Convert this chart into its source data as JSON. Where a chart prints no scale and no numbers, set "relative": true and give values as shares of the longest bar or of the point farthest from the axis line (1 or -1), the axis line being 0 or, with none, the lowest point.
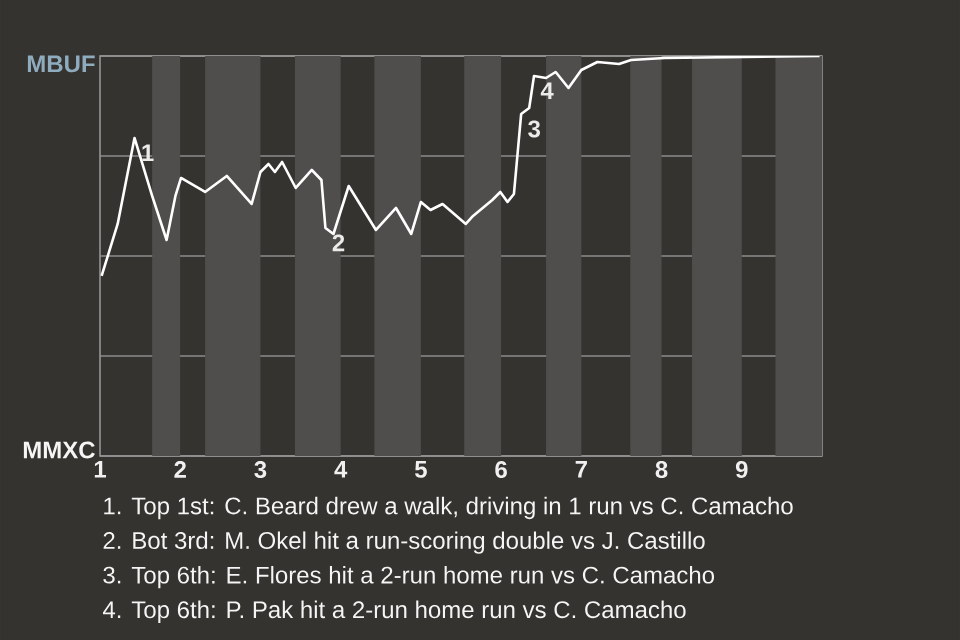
{
  "chart_data": {
    "type": "line",
    "relative": true,
    "x": [
      1.02,
      1.22,
      1.43,
      1.65,
      1.83,
      1.94,
      2.01,
      2.31,
      2.58,
      2.89,
      3.0,
      3.1,
      3.18,
      3.27,
      3.44,
      3.64,
      3.76,
      3.81,
      3.91,
      4.1,
      4.44,
      4.69,
      4.88,
      5.0,
      5.12,
      5.27,
      5.56,
      5.65,
      5.89,
      5.99,
      6.08,
      6.16,
      6.25,
      6.35,
      6.41,
      6.56,
      6.68,
      6.84,
      7.0,
      7.2,
      7.47,
      7.62,
      8.04,
      9.97
    ],
    "series": [
      {
        "color": "#ffffff",
        "values": [
          0.45,
          0.58,
          0.795,
          0.65,
          0.54,
          0.65,
          0.695,
          0.66,
          0.7,
          0.63,
          0.71,
          0.73,
          0.71,
          0.735,
          0.67,
          0.715,
          0.69,
          0.57,
          0.555,
          0.675,
          0.565,
          0.62,
          0.555,
          0.635,
          0.615,
          0.63,
          0.58,
          0.6,
          0.64,
          0.66,
          0.635,
          0.655,
          0.855,
          0.87,
          0.95,
          0.945,
          0.96,
          0.92,
          0.965,
          0.985,
          0.98,
          0.99,
          0.995,
          1.0
        ]
      }
    ],
    "xlim": [
      1,
      10
    ],
    "xticks": [
      1,
      2,
      3,
      4,
      5,
      6,
      7,
      8,
      9
    ],
    "grid": "y",
    "bands": [
      {
        "axis": "x",
        "from": 1.65,
        "to": 2,
        "color": "#4f4e4c"
      },
      {
        "axis": "x",
        "from": 2.31,
        "to": 3,
        "color": "#4f4e4c"
      },
      {
        "axis": "x",
        "from": 3.43,
        "to": 4,
        "color": "#4f4e4c"
      },
      {
        "axis": "x",
        "from": 4.42,
        "to": 5,
        "color": "#4f4e4c"
      },
      {
        "axis": "x",
        "from": 5.54,
        "to": 6,
        "color": "#4f4e4c"
      },
      {
        "axis": "x",
        "from": 6.56,
        "to": 7,
        "color": "#4f4e4c"
      },
      {
        "axis": "x",
        "from": 7.61,
        "to": 8,
        "color": "#4f4e4c"
      },
      {
        "axis": "x",
        "from": 8.38,
        "to": 9,
        "color": "#4f4e4c"
      },
      {
        "axis": "x",
        "from": 9.42,
        "to": 10,
        "color": "#4f4e4c"
      }
    ],
    "annotations": [
      {
        "text": "1",
        "x": 1.43,
        "y": 0.795
      },
      {
        "text": "2",
        "x": 3.81,
        "y": 0.57
      },
      {
        "text": "3",
        "x": 6.25,
        "y": 0.855
      },
      {
        "text": "4",
        "x": 6.41,
        "y": 0.95
      },
      "MBUF",
      "MMXC",
      "1. Top 1st: C. Beard drew a walk, driving in 1 run vs C. Camacho",
      "2. Bot 3rd: M. Okel hit a run-scoring double vs J. Castillo",
      "3. Top 6th: E. Flores hit a 2-run home run vs C. Camacho",
      "4. Top 6th: P. Pak hit a 2-run home run vs C. Camacho"
    ]
  }
}
